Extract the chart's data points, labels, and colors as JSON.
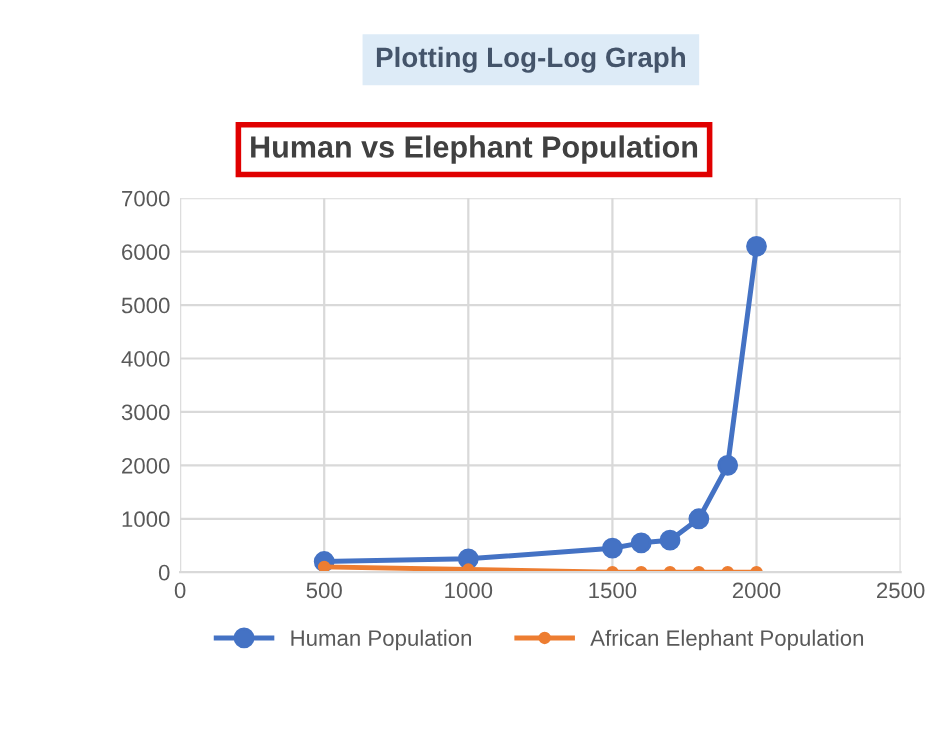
{
  "chart_data": {
    "type": "line",
    "title": "Human vs Elephant Population",
    "annotations": [
      "Plotting Log-Log Graph"
    ],
    "x": [
      500,
      1000,
      1500,
      1600,
      1700,
      1800,
      1900,
      2000
    ],
    "series": [
      {
        "name": "Human Population",
        "color": "#4472c4",
        "values": [
          200,
          250,
          450,
          550,
          600,
          1000,
          2000,
          6100
        ]
      },
      {
        "name": "African Elephant Population",
        "color": "#ed7d31",
        "values": [
          100,
          50,
          0,
          0,
          0,
          0,
          0,
          0
        ]
      }
    ],
    "xlim": [
      0,
      2500
    ],
    "xticks": [
      0,
      500,
      1000,
      1500,
      2000,
      2500
    ],
    "ylim": [
      0,
      7000
    ],
    "yticks": [
      0,
      1000,
      2000,
      3000,
      4000,
      5000,
      6000,
      7000
    ],
    "grid": true,
    "legend": "bottom",
    "marker": "circle",
    "line_style": "solid"
  }
}
